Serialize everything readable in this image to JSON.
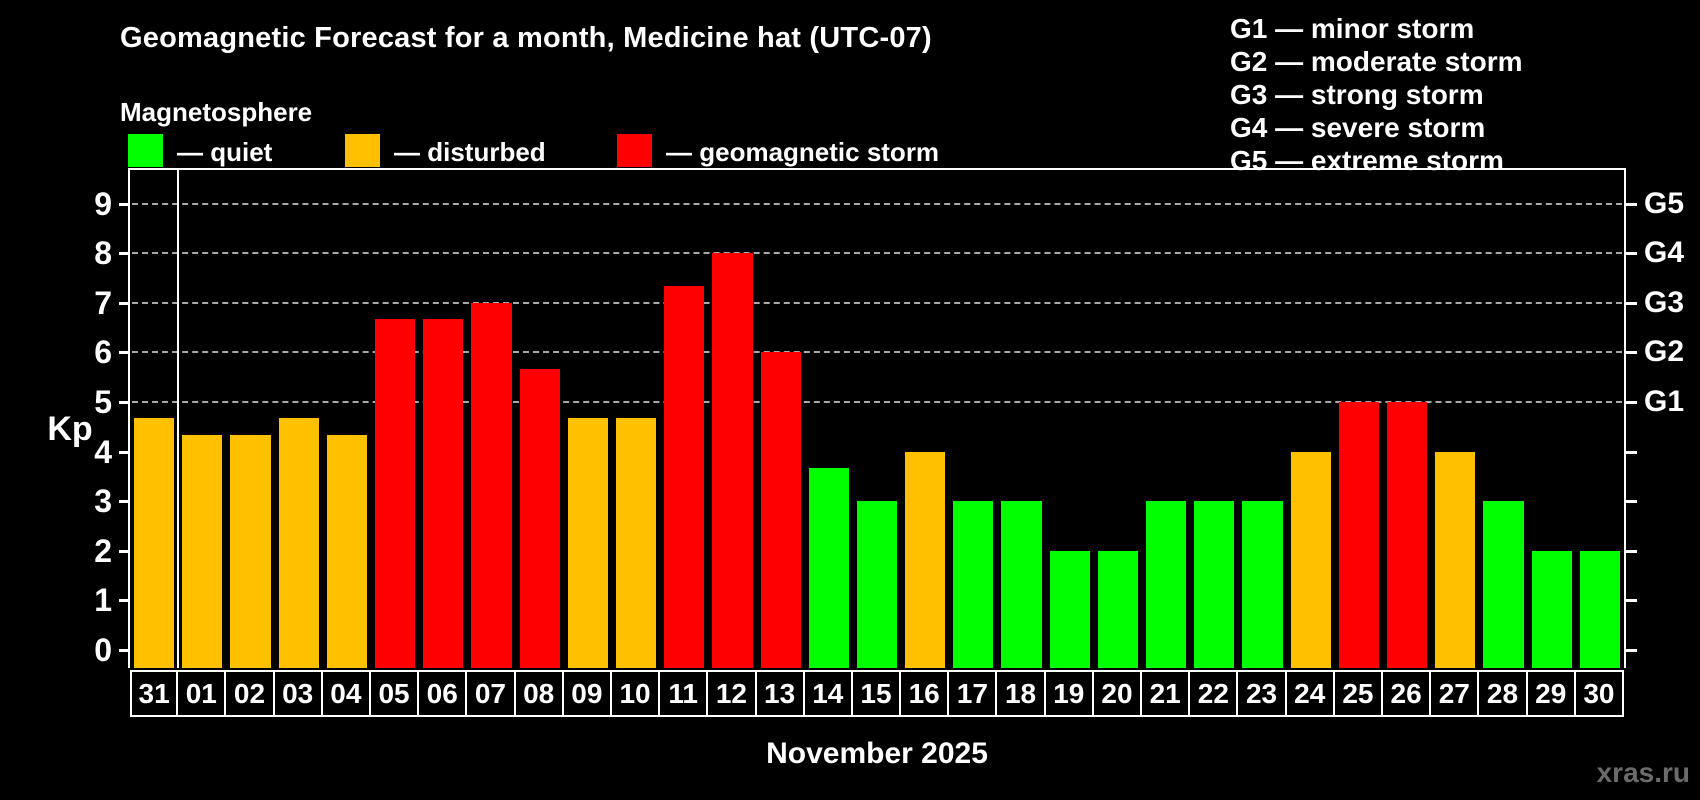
{
  "title": "Geomagnetic Forecast for a month, Medicine hat (UTC-07)",
  "subtitle": "Magnetosphere",
  "legend": {
    "items": [
      {
        "status": "quiet",
        "label": "— quiet",
        "color": "#00ff00"
      },
      {
        "status": "disturbed",
        "label": "— disturbed",
        "color": "#ffc000"
      },
      {
        "status": "storm",
        "label": "— geomagnetic storm",
        "color": "#ff0000"
      }
    ]
  },
  "g_scale_legend": [
    "G1 — minor storm",
    "G2 — moderate storm",
    "G3 — strong storm",
    "G4 — severe storm",
    "G5 — extreme storm"
  ],
  "watermark": "xras.ru",
  "chart_data": {
    "type": "bar",
    "title": "Geomagnetic Forecast for a month, Medicine hat (UTC-07)",
    "ylabel": "Kp",
    "xlabel": "November 2025",
    "ylim": [
      0,
      9.65
    ],
    "yticks": [
      0,
      1,
      2,
      3,
      4,
      5,
      6,
      7,
      8,
      9
    ],
    "grid": true,
    "gridlines_at": [
      5,
      6,
      7,
      8,
      9
    ],
    "right_axis_labels": [
      {
        "kp": 5,
        "label": "G1"
      },
      {
        "kp": 6,
        "label": "G2"
      },
      {
        "kp": 7,
        "label": "G3"
      },
      {
        "kp": 8,
        "label": "G4"
      },
      {
        "kp": 9,
        "label": "G5"
      }
    ],
    "categories": [
      "31",
      "01",
      "02",
      "03",
      "04",
      "05",
      "06",
      "07",
      "08",
      "09",
      "10",
      "11",
      "12",
      "13",
      "14",
      "15",
      "16",
      "17",
      "18",
      "19",
      "20",
      "21",
      "22",
      "23",
      "24",
      "25",
      "26",
      "27",
      "28",
      "29",
      "30"
    ],
    "values": [
      4.67,
      4.33,
      4.33,
      4.67,
      4.33,
      6.67,
      6.67,
      7.0,
      5.67,
      4.67,
      4.67,
      7.33,
      8.0,
      6.0,
      3.67,
      3.0,
      4.0,
      3.0,
      3.0,
      2.0,
      2.0,
      3.0,
      3.0,
      3.0,
      4.0,
      5.0,
      5.0,
      4.0,
      3.0,
      2.0,
      2.0
    ],
    "statuses": [
      "disturbed",
      "disturbed",
      "disturbed",
      "disturbed",
      "disturbed",
      "storm",
      "storm",
      "storm",
      "storm",
      "disturbed",
      "disturbed",
      "storm",
      "storm",
      "storm",
      "quiet",
      "quiet",
      "disturbed",
      "quiet",
      "quiet",
      "quiet",
      "quiet",
      "quiet",
      "quiet",
      "quiet",
      "disturbed",
      "storm",
      "storm",
      "disturbed",
      "quiet",
      "quiet",
      "quiet"
    ],
    "status_colors": {
      "quiet": "#00ff00",
      "disturbed": "#ffc000",
      "storm": "#ff0000"
    },
    "month_separator_after_category": "31",
    "legend_position": "top"
  }
}
